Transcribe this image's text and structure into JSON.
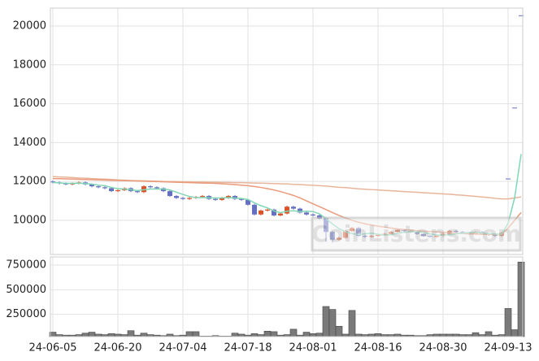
{
  "chart_data": {
    "type": "candlestick",
    "x": [
      "24-06-05",
      null,
      null,
      null,
      null,
      null,
      null,
      null,
      null,
      null,
      "24-06-20",
      null,
      null,
      null,
      null,
      null,
      null,
      null,
      null,
      null,
      "24-07-04",
      null,
      null,
      null,
      null,
      null,
      null,
      null,
      null,
      null,
      "24-07-18",
      null,
      null,
      null,
      null,
      null,
      null,
      null,
      null,
      null,
      "24-08-01",
      null,
      null,
      null,
      null,
      null,
      null,
      null,
      null,
      null,
      "24-08-16",
      null,
      null,
      null,
      null,
      null,
      null,
      null,
      null,
      null,
      "24-08-30",
      null,
      null,
      null,
      null,
      null,
      null,
      null,
      null,
      null,
      "24-09-13",
      null,
      null
    ],
    "open": [
      12000,
      11950,
      11900,
      11850,
      11900,
      11950,
      11850,
      11750,
      11700,
      11650,
      11500,
      11550,
      11650,
      11500,
      11450,
      11750,
      11700,
      11650,
      11500,
      11250,
      11150,
      11100,
      11150,
      11200,
      11250,
      11100,
      11050,
      11150,
      11250,
      11100,
      11050,
      10800,
      10300,
      10500,
      10550,
      10250,
      10350,
      10700,
      10600,
      10400,
      10300,
      10250,
      10100,
      9400,
      9000,
      9100,
      9450,
      9600,
      9200,
      9150,
      9200,
      9250,
      9300,
      9400,
      9500,
      9450,
      9400,
      9300,
      9200,
      9150,
      9200,
      9300,
      9450,
      9400,
      9350,
      9300,
      9400,
      9300,
      9250,
      9200,
      12150,
      15800,
      20550
    ],
    "high": [
      12050,
      12000,
      11950,
      11950,
      12000,
      12000,
      11900,
      11800,
      11750,
      11700,
      11600,
      11700,
      11700,
      11550,
      11800,
      11800,
      11750,
      11700,
      11550,
      11300,
      11200,
      11200,
      11250,
      11300,
      11300,
      11150,
      11200,
      11300,
      11300,
      11150,
      11100,
      10850,
      10550,
      10600,
      10600,
      10400,
      10750,
      10750,
      10650,
      10450,
      10350,
      10300,
      10150,
      9450,
      9150,
      9500,
      9650,
      9650,
      9250,
      9250,
      9300,
      9350,
      9450,
      9550,
      9550,
      9500,
      9450,
      9350,
      9250,
      9250,
      9350,
      9500,
      9500,
      9450,
      9400,
      9450,
      9450,
      9350,
      9300,
      9400,
      12150,
      15800,
      20550
    ],
    "low": [
      11900,
      11850,
      11800,
      11800,
      11850,
      11800,
      11700,
      11650,
      11600,
      11450,
      11450,
      11500,
      11450,
      11400,
      11400,
      11650,
      11600,
      11450,
      11200,
      11100,
      11050,
      11050,
      11100,
      11150,
      11050,
      11000,
      11000,
      11100,
      11050,
      11000,
      10750,
      10250,
      10250,
      10450,
      10200,
      10200,
      10300,
      10550,
      10350,
      10250,
      10200,
      10050,
      8900,
      8850,
      8950,
      9050,
      9400,
      9150,
      9100,
      9100,
      9150,
      9200,
      9250,
      9350,
      9400,
      9350,
      9250,
      9150,
      9100,
      9100,
      9150,
      9250,
      9350,
      9300,
      9250,
      9250,
      9250,
      9200,
      9150,
      9150,
      12150,
      15800,
      20550
    ],
    "close": [
      11950,
      11900,
      11850,
      11900,
      11950,
      11850,
      11750,
      11700,
      11650,
      11500,
      11550,
      11650,
      11500,
      11450,
      11750,
      11700,
      11650,
      11500,
      11250,
      11150,
      11100,
      11150,
      11200,
      11250,
      11100,
      11050,
      11150,
      11250,
      11100,
      11050,
      10800,
      10300,
      10500,
      10550,
      10250,
      10350,
      10700,
      10600,
      10400,
      10300,
      10250,
      10100,
      9400,
      9000,
      9100,
      9450,
      9600,
      9200,
      9150,
      9200,
      9250,
      9300,
      9400,
      9500,
      9450,
      9400,
      9300,
      9200,
      9150,
      9200,
      9300,
      9450,
      9400,
      9350,
      9300,
      9400,
      9300,
      9250,
      9200,
      9350,
      12150,
      15800,
      20550
    ],
    "up_color": "#d9532c",
    "down_color": "#6670c0",
    "ylim": [
      8240,
      20920
    ],
    "yticks": [
      10000,
      12000,
      14000,
      16000,
      18000,
      20000
    ],
    "grid": true,
    "lines": [
      {
        "color": "#e8b59a",
        "values": [
          12250,
          12230,
          12220,
          12200,
          12180,
          12170,
          12150,
          12130,
          12120,
          12100,
          12080,
          12070,
          12050,
          12040,
          12030,
          12020,
          12010,
          12000,
          11990,
          11990,
          11980,
          11980,
          11970,
          11970,
          11960,
          11960,
          11950,
          11950,
          11940,
          11940,
          11930,
          11920,
          11910,
          11900,
          11890,
          11880,
          11870,
          11850,
          11840,
          11820,
          11800,
          11780,
          11760,
          11730,
          11700,
          11680,
          11650,
          11620,
          11600,
          11580,
          11560,
          11540,
          11520,
          11500,
          11480,
          11460,
          11440,
          11420,
          11400,
          11380,
          11360,
          11340,
          11310,
          11290,
          11260,
          11230,
          11200,
          11170,
          11130,
          11100,
          11100,
          11150,
          11200
        ]
      },
      {
        "color": "#e99a7a",
        "values": [
          12150,
          12140,
          12130,
          12120,
          12110,
          12100,
          12090,
          12080,
          12070,
          12060,
          12050,
          12040,
          12030,
          12020,
          12010,
          12000,
          11990,
          11980,
          11970,
          11960,
          11950,
          11940,
          11930,
          11920,
          11910,
          11900,
          11880,
          11860,
          11840,
          11810,
          11780,
          11740,
          11690,
          11630,
          11560,
          11480,
          11380,
          11280,
          11150,
          11000,
          10850,
          10700,
          10550,
          10400,
          10250,
          10120,
          10000,
          9900,
          9820,
          9760,
          9700,
          9650,
          9600,
          9560,
          9520,
          9490,
          9460,
          9440,
          9420,
          9400,
          9380,
          9360,
          9340,
          9320,
          9300,
          9290,
          9280,
          9270,
          9260,
          9280,
          9600,
          10000,
          10400
        ]
      },
      {
        "color": "#7fd6b4",
        "values": [
          11950,
          11925,
          11900,
          11900,
          11910,
          11890,
          11860,
          11810,
          11780,
          11690,
          11630,
          11610,
          11570,
          11530,
          11570,
          11610,
          11610,
          11610,
          11560,
          11450,
          11330,
          11230,
          11170,
          11170,
          11160,
          11150,
          11150,
          11170,
          11150,
          11120,
          11070,
          10900,
          10750,
          10640,
          10480,
          10390,
          10470,
          10490,
          10450,
          10470,
          10450,
          10330,
          10090,
          9810,
          9570,
          9410,
          9310,
          9270,
          9300,
          9340,
          9280,
          9240,
          9260,
          9330,
          9380,
          9410,
          9410,
          9370,
          9300,
          9250,
          9230,
          9260,
          9300,
          9340,
          9370,
          9380,
          9350,
          9320,
          9290,
          9280,
          9850,
          11150,
          13410
        ]
      }
    ],
    "volume": {
      "type": "bar",
      "color": "#7a7a7a",
      "values": [
        70000,
        45000,
        40000,
        40000,
        45000,
        60000,
        70000,
        50000,
        45000,
        55000,
        50000,
        45000,
        85000,
        40000,
        60000,
        45000,
        40000,
        35000,
        50000,
        35000,
        40000,
        75000,
        75000,
        30000,
        30000,
        35000,
        30000,
        30000,
        60000,
        50000,
        40000,
        55000,
        45000,
        80000,
        75000,
        40000,
        45000,
        100000,
        40000,
        70000,
        55000,
        60000,
        330000,
        300000,
        130000,
        50000,
        290000,
        50000,
        45000,
        50000,
        55000,
        45000,
        45000,
        50000,
        40000,
        40000,
        35000,
        35000,
        45000,
        50000,
        50000,
        50000,
        50000,
        45000,
        45000,
        65000,
        45000,
        75000,
        40000,
        45000,
        310000,
        95000,
        780000
      ],
      "ylim": [
        25000,
        832000
      ],
      "yticks": [
        250000,
        500000,
        750000
      ]
    },
    "watermark": "CoinListens.com"
  }
}
